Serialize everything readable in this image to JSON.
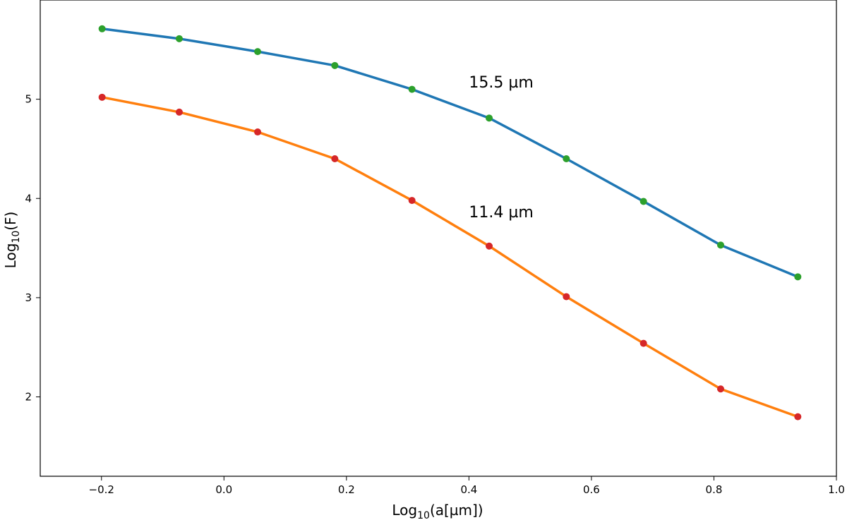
{
  "chart_data": {
    "type": "line",
    "title": "",
    "xlabel": {
      "base": "Log",
      "sub": "10",
      "rest": "(a[µm])"
    },
    "ylabel": {
      "base": "Log",
      "sub": "10",
      "rest": "(F)"
    },
    "xlim": [
      -0.3,
      1.0
    ],
    "ylim": [
      1.2,
      6.0
    ],
    "xticks": [
      -0.2,
      0.0,
      0.2,
      0.4,
      0.6,
      0.8,
      1.0
    ],
    "xtick_labels": [
      "−0.2",
      "0.0",
      "0.2",
      "0.4",
      "0.6",
      "0.8",
      "1.0"
    ],
    "yticks": [
      2,
      3,
      4,
      5
    ],
    "ytick_labels": [
      "2",
      "3",
      "4",
      "5"
    ],
    "grid": false,
    "x": [
      -0.199,
      -0.073,
      0.055,
      0.181,
      0.307,
      0.433,
      0.559,
      0.685,
      0.811,
      0.937
    ],
    "series": [
      {
        "values": [
          5.71,
          5.61,
          5.48,
          5.34,
          5.1,
          4.81,
          4.4,
          3.97,
          3.53,
          3.21
        ],
        "line_color": "#1f77b4",
        "marker_color": "#2ca02c"
      },
      {
        "values": [
          5.02,
          4.87,
          4.67,
          4.4,
          3.98,
          3.52,
          3.01,
          2.54,
          2.08,
          1.8
        ],
        "line_color": "#ff7f0e",
        "marker_color": "#d62728"
      }
    ],
    "annotations": [
      {
        "text": "15.5 µm",
        "x": 0.4,
        "y": 5.12
      },
      {
        "text": "11.4 µm",
        "x": 0.4,
        "y": 3.81
      }
    ]
  }
}
